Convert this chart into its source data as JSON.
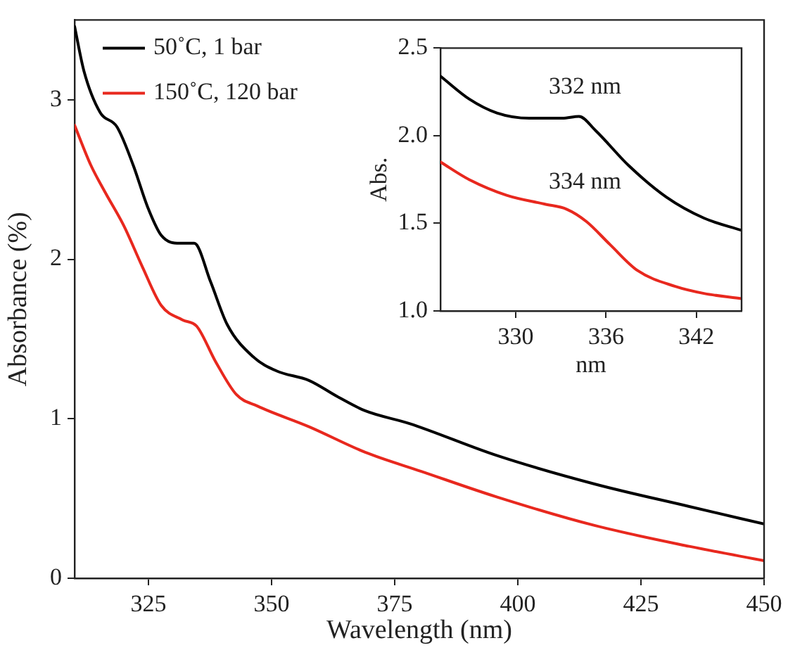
{
  "chart_data": [
    {
      "type": "line",
      "xlabel": "Wavelength (nm)",
      "ylabel": "Absorbance (%)",
      "xlim": [
        310,
        450
      ],
      "ylim": [
        0,
        3.5
      ],
      "xticks": [
        325,
        350,
        375,
        400,
        425,
        450
      ],
      "yticks": [
        0,
        1,
        2,
        3
      ],
      "legend": "top left",
      "grid": false,
      "marker": "none",
      "line_style": "solid",
      "series": [
        {
          "name": "50˚C, 1 bar",
          "color": "#000000",
          "x": [
            310,
            311.9,
            315.2,
            318.6,
            321.9,
            324.8,
            327.6,
            331.4,
            334.3,
            337.6,
            341,
            346.2,
            351,
            357.6,
            363.3,
            369,
            378,
            395.7,
            415.7,
            434.8,
            450
          ],
          "values": [
            3.46,
            3.18,
            2.92,
            2.83,
            2.59,
            2.33,
            2.15,
            2.1,
            2.1,
            1.86,
            1.59,
            1.39,
            1.3,
            1.24,
            1.14,
            1.05,
            0.97,
            0.77,
            0.59,
            0.45,
            0.34
          ]
        },
        {
          "name": "150˚C, 120 bar",
          "color": "#e8281e",
          "x": [
            310,
            313.3,
            316.2,
            320,
            323.8,
            327.6,
            331.9,
            334.8,
            338.6,
            342.9,
            347.1,
            357.6,
            369,
            380.4,
            395.7,
            415.7,
            434.8,
            450
          ],
          "values": [
            2.84,
            2.59,
            2.42,
            2.21,
            1.95,
            1.71,
            1.62,
            1.58,
            1.36,
            1.15,
            1.08,
            0.95,
            0.79,
            0.67,
            0.51,
            0.33,
            0.2,
            0.11
          ]
        }
      ]
    },
    {
      "type": "line",
      "xlabel": "nm",
      "ylabel": "Abs.",
      "xlim": [
        325,
        345
      ],
      "ylim": [
        1,
        2.5
      ],
      "xticks": [
        330,
        336,
        342
      ],
      "yticks": [
        {
          "value": 1,
          "label": "1.0"
        },
        {
          "value": 1.5,
          "label": "1.5"
        },
        {
          "value": 2,
          "label": "2.0"
        },
        {
          "value": 2.5,
          "label": "2.5"
        }
      ],
      "grid": false,
      "marker": "none",
      "line_style": "solid",
      "annotations": [
        "332 nm",
        "334 nm"
      ],
      "series": [
        {
          "color": "#000000",
          "x": [
            325,
            326.9,
            328.75,
            330.9,
            333.1,
            334.2,
            335.3,
            337.5,
            340,
            342.5,
            345
          ],
          "values": [
            2.34,
            2.21,
            2.13,
            2.1,
            2.1,
            2.11,
            2.03,
            1.83,
            1.65,
            1.53,
            1.46
          ]
        },
        {
          "color": "#e8281e",
          "x": [
            325,
            326.9,
            329.4,
            331.9,
            333.4,
            334.7,
            336.25,
            338.1,
            340.6,
            342.5,
            345
          ],
          "values": [
            1.85,
            1.75,
            1.66,
            1.61,
            1.58,
            1.51,
            1.38,
            1.23,
            1.14,
            1.1,
            1.07
          ]
        }
      ]
    }
  ]
}
